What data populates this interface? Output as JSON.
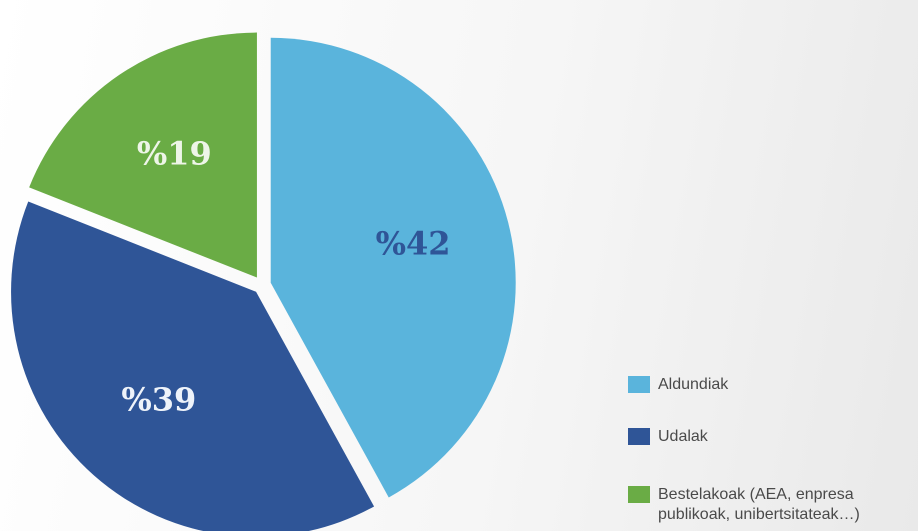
{
  "chart_data": {
    "type": "pie",
    "categories": [
      "Aldundiak",
      "Udalak",
      "Bestelakoak (AEA, enpresa publikoak, unibertsitateak…)"
    ],
    "values": [
      42,
      39,
      19
    ],
    "value_labels": [
      "%42",
      "%39",
      "%19"
    ],
    "colors": [
      "#5ab4dc",
      "#2f5597",
      "#6aac45"
    ],
    "label_colors": [
      "#2f5597",
      "#eef3fa",
      "#eef5e8"
    ]
  }
}
